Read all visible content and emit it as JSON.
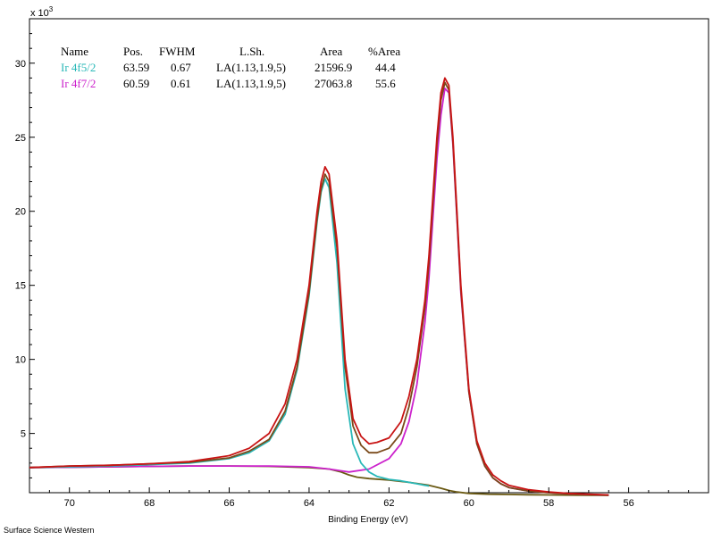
{
  "footer": "Surface Science Western",
  "chart_data": {
    "type": "line",
    "title": "",
    "xlabel": "Binding Energy (eV)",
    "ylabel": "",
    "y_multiplier_label": "x 10",
    "y_multiplier_exp": "3",
    "xlim": [
      71,
      54
    ],
    "ylim": [
      1,
      33
    ],
    "x_reversed": true,
    "x_ticks": [
      70,
      68,
      66,
      64,
      62,
      60,
      58,
      56
    ],
    "y_ticks": [
      5,
      10,
      15,
      20,
      25,
      30
    ],
    "grid": false,
    "legend_table": {
      "headers": [
        "Name",
        "Pos.",
        "FWHM",
        "L.Sh.",
        "Area",
        "%Area"
      ],
      "rows": [
        {
          "name": "Ir 4f5/2",
          "pos": "63.59",
          "fwhm": "0.67",
          "lsh": "LA(1.13,1.9,5)",
          "area": "21596.9",
          "pct": "44.4",
          "color": "#29b8b8"
        },
        {
          "name": "Ir 4f7/2",
          "pos": "60.59",
          "fwhm": "0.61",
          "lsh": "LA(1.13,1.9,5)",
          "area": "27063.8",
          "pct": "55.6",
          "color": "#cc22cc"
        }
      ]
    },
    "series": [
      {
        "color": "#c81414",
        "x": [
          71.0,
          70.0,
          69.0,
          68.0,
          67.0,
          66.0,
          65.5,
          65.0,
          64.6,
          64.3,
          64.0,
          63.8,
          63.7,
          63.6,
          63.5,
          63.3,
          63.1,
          62.9,
          62.7,
          62.5,
          62.3,
          62.0,
          61.7,
          61.5,
          61.3,
          61.1,
          61.0,
          60.9,
          60.8,
          60.7,
          60.6,
          60.5,
          60.4,
          60.3,
          60.2,
          60.0,
          59.8,
          59.6,
          59.4,
          59.2,
          59.0,
          58.5,
          58.0,
          57.5,
          57.0,
          56.5
        ],
        "values": [
          2.7,
          2.8,
          2.85,
          2.95,
          3.1,
          3.5,
          4.0,
          5.0,
          7.0,
          10.0,
          15.0,
          20.0,
          22.0,
          23.0,
          22.5,
          18.0,
          10.0,
          6.0,
          4.8,
          4.3,
          4.4,
          4.7,
          5.8,
          7.5,
          10.0,
          14.0,
          17.0,
          21.0,
          25.0,
          28.0,
          29.0,
          28.5,
          25.0,
          20.0,
          15.0,
          8.0,
          4.5,
          3.0,
          2.2,
          1.8,
          1.5,
          1.2,
          1.05,
          0.95,
          0.9,
          0.85
        ]
      },
      {
        "color": "#7a4a1a",
        "x": [
          71.0,
          70.0,
          69.0,
          68.0,
          67.0,
          66.0,
          65.5,
          65.0,
          64.6,
          64.3,
          64.0,
          63.8,
          63.7,
          63.6,
          63.5,
          63.3,
          63.1,
          62.9,
          62.7,
          62.5,
          62.3,
          62.0,
          61.7,
          61.5,
          61.3,
          61.1,
          61.0,
          60.9,
          60.8,
          60.7,
          60.6,
          60.5,
          60.4,
          60.3,
          60.2,
          60.0,
          59.8,
          59.6,
          59.4,
          59.2,
          59.0,
          58.5,
          58.0,
          57.5,
          57.0,
          56.5
        ],
        "values": [
          2.7,
          2.8,
          2.85,
          2.95,
          3.05,
          3.35,
          3.8,
          4.6,
          6.5,
          9.5,
          14.5,
          19.5,
          21.5,
          22.5,
          22.0,
          17.5,
          9.5,
          5.5,
          4.2,
          3.7,
          3.7,
          4.0,
          5.0,
          6.8,
          9.5,
          13.5,
          16.5,
          20.5,
          24.5,
          27.5,
          28.7,
          28.2,
          24.7,
          19.7,
          14.7,
          7.8,
          4.3,
          2.8,
          2.0,
          1.6,
          1.35,
          1.1,
          1.0,
          0.92,
          0.88,
          0.84
        ]
      },
      {
        "color": "#29b8b8",
        "x": [
          71.0,
          70.0,
          69.0,
          68.0,
          67.0,
          66.0,
          65.5,
          65.0,
          64.6,
          64.3,
          64.0,
          63.8,
          63.7,
          63.6,
          63.5,
          63.3,
          63.1,
          62.9,
          62.7,
          62.5,
          62.3,
          62.0,
          61.7,
          61.5,
          61.3,
          61.1,
          61.0
        ],
        "values": [
          2.7,
          2.75,
          2.8,
          2.9,
          3.0,
          3.3,
          3.7,
          4.5,
          6.3,
          9.3,
          14.3,
          19.3,
          21.3,
          22.2,
          21.6,
          16.5,
          8.0,
          4.3,
          3.0,
          2.4,
          2.1,
          1.9,
          1.8,
          1.7,
          1.6,
          1.5,
          1.45
        ]
      },
      {
        "color": "#cc22cc",
        "x": [
          71.0,
          70.0,
          69.0,
          68.0,
          67.0,
          66.0,
          65.0,
          64.0,
          63.5,
          63.0,
          62.5,
          62.0,
          61.7,
          61.5,
          61.3,
          61.1,
          61.0,
          60.9,
          60.8,
          60.7,
          60.6,
          60.5,
          60.4,
          60.3,
          60.2,
          60.0,
          59.8,
          59.6,
          59.4,
          59.2,
          59.0,
          58.5,
          58.0,
          57.5,
          57.0,
          56.5
        ],
        "values": [
          2.7,
          2.72,
          2.75,
          2.78,
          2.8,
          2.8,
          2.8,
          2.75,
          2.6,
          2.4,
          2.6,
          3.3,
          4.3,
          5.8,
          8.3,
          12.5,
          15.5,
          19.5,
          23.5,
          26.5,
          28.3,
          28.0,
          24.5,
          19.5,
          14.5,
          7.8,
          4.3,
          2.8,
          2.0,
          1.6,
          1.35,
          1.1,
          1.0,
          0.92,
          0.88,
          0.84
        ]
      },
      {
        "color": "#6b5a14",
        "x": [
          71.0,
          70.0,
          69.0,
          68.0,
          67.0,
          66.0,
          65.0,
          64.0,
          63.5,
          63.2,
          63.0,
          62.8,
          62.5,
          62.0,
          61.5,
          61.0,
          60.7,
          60.5,
          60.3,
          60.0,
          59.5,
          59.0,
          58.5,
          58.0,
          57.5,
          57.0,
          56.5
        ],
        "values": [
          2.7,
          2.72,
          2.75,
          2.78,
          2.8,
          2.8,
          2.78,
          2.7,
          2.6,
          2.4,
          2.2,
          2.05,
          1.95,
          1.85,
          1.7,
          1.5,
          1.3,
          1.15,
          1.05,
          0.95,
          0.9,
          0.88,
          0.86,
          0.85,
          0.84,
          0.83,
          0.82
        ]
      }
    ]
  }
}
